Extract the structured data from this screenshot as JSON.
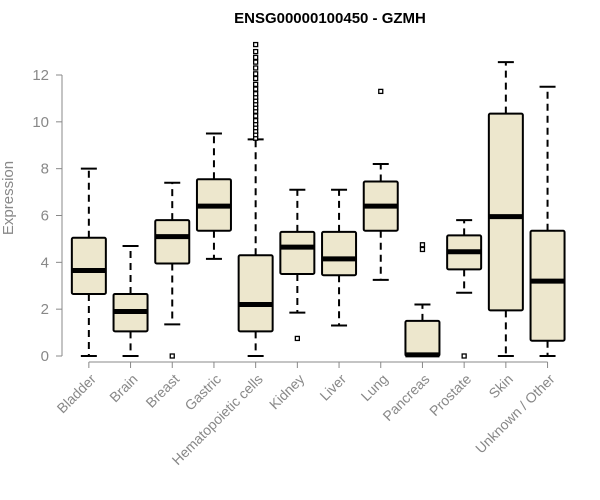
{
  "chart_data": {
    "type": "box",
    "title": "ENSG00000100450 - GZMH",
    "xlabel": "",
    "ylabel": "Expression",
    "ylim": [
      0,
      13.5
    ],
    "yticks": [
      0,
      2,
      4,
      6,
      8,
      10,
      12
    ],
    "grid": false,
    "colors": {
      "box_fill": "#ede7cd",
      "box_stroke": "#000000",
      "axis": "#888888"
    },
    "categories": [
      "Bladder",
      "Brain",
      "Breast",
      "Gastric",
      "Hematopoietic cells",
      "Kidney",
      "Liver",
      "Lung",
      "Pancreas",
      "Prostate",
      "Skin",
      "Unknown / Other"
    ],
    "boxes": [
      {
        "min": 0,
        "q1": 2.65,
        "median": 3.65,
        "q3": 5.05,
        "max": 8.0,
        "outliers": []
      },
      {
        "min": 0,
        "q1": 1.05,
        "median": 1.9,
        "q3": 2.65,
        "max": 4.7,
        "outliers": []
      },
      {
        "min": 1.35,
        "q1": 3.95,
        "median": 5.1,
        "q3": 5.8,
        "max": 7.4,
        "outliers": [
          0
        ]
      },
      {
        "min": 4.15,
        "q1": 5.35,
        "median": 6.4,
        "q3": 7.55,
        "max": 9.5,
        "outliers": []
      },
      {
        "min": 0,
        "q1": 1.05,
        "median": 2.2,
        "q3": 4.3,
        "max": 9.25,
        "outliers": [
          9.3,
          9.45,
          9.6,
          9.75,
          9.9,
          10.05,
          10.25,
          10.45,
          10.6,
          10.75,
          10.9,
          11.05,
          11.2,
          11.4,
          11.6,
          11.85,
          12.05,
          12.3,
          12.55,
          12.75,
          13.0,
          13.3
        ]
      },
      {
        "min": 1.85,
        "q1": 3.5,
        "median": 4.65,
        "q3": 5.3,
        "max": 7.1,
        "outliers": [
          0.75
        ]
      },
      {
        "min": 1.3,
        "q1": 3.45,
        "median": 4.15,
        "q3": 5.3,
        "max": 7.1,
        "outliers": []
      },
      {
        "min": 3.25,
        "q1": 5.35,
        "median": 6.4,
        "q3": 7.45,
        "max": 8.2,
        "outliers": [
          11.3
        ]
      },
      {
        "min": 0,
        "q1": 0,
        "median": 0.05,
        "q3": 1.5,
        "max": 2.2,
        "outliers": [
          4.55,
          4.75
        ]
      },
      {
        "min": 2.7,
        "q1": 3.7,
        "median": 4.45,
        "q3": 5.15,
        "max": 5.8,
        "outliers": [
          0
        ]
      },
      {
        "min": 0,
        "q1": 1.95,
        "median": 5.95,
        "q3": 10.35,
        "max": 12.55,
        "outliers": []
      },
      {
        "min": 0,
        "q1": 0.65,
        "median": 3.2,
        "q3": 5.35,
        "max": 11.5,
        "outliers": []
      }
    ]
  }
}
